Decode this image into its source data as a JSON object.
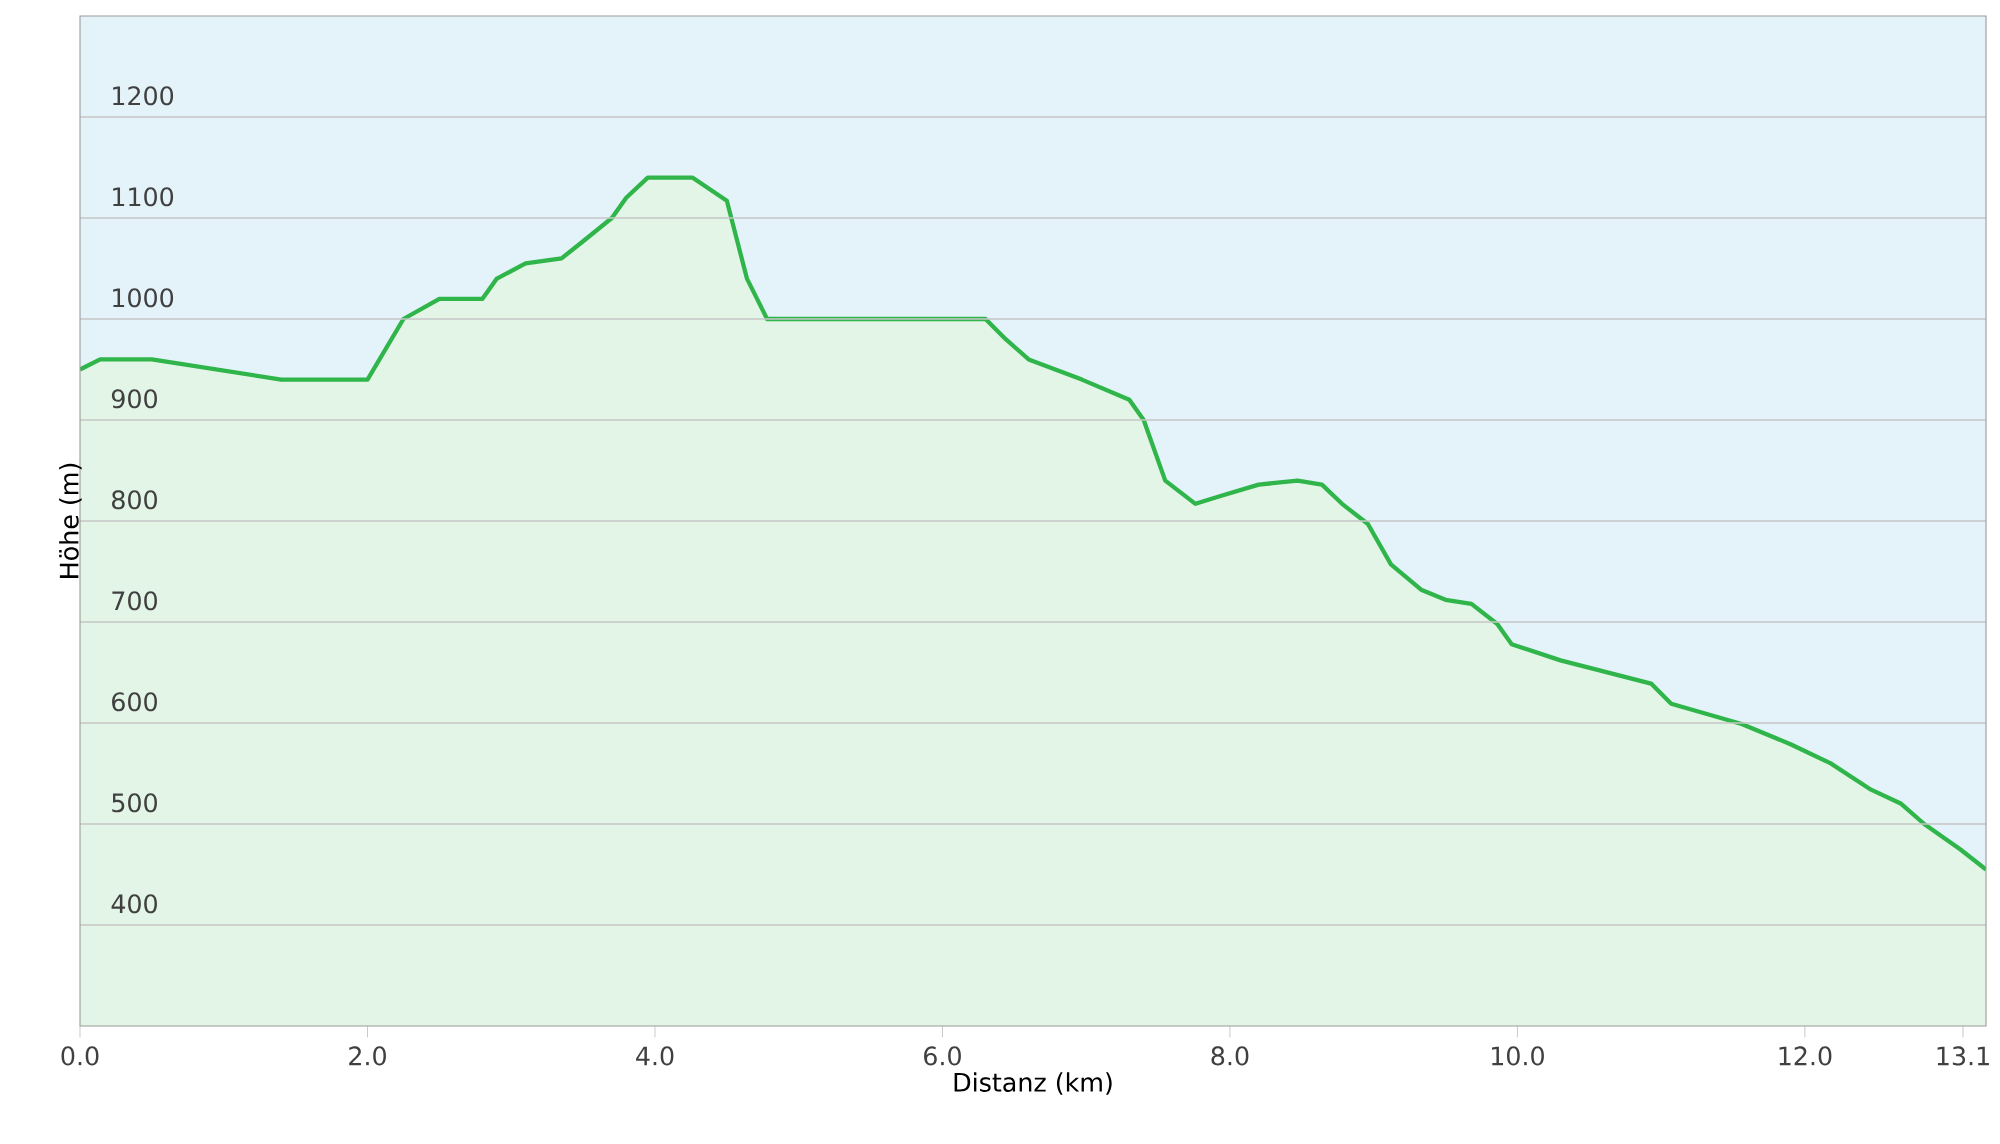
{
  "chart_data": {
    "type": "area",
    "xlabel": "Distanz (km)",
    "ylabel": "Höhe (m)",
    "color": "#2fb54a",
    "x": [
      0,
      0.14,
      0.5,
      1.4,
      2.0,
      2.25,
      2.5,
      2.8,
      2.9,
      3.1,
      3.35,
      3.5,
      3.7,
      3.8,
      3.95,
      4.26,
      4.5,
      4.64,
      4.78,
      6.3,
      6.44,
      6.6,
      6.97,
      7.3,
      7.4,
      7.55,
      7.76,
      7.94,
      8.2,
      8.47,
      8.64,
      8.78,
      8.96,
      9.12,
      9.33,
      9.5,
      9.68,
      9.86,
      9.96,
      10.3,
      10.93,
      11.07,
      11.56,
      11.9,
      12.18,
      12.46,
      12.67,
      12.83,
      13.08,
      13.26
    ],
    "values": [
      950,
      960,
      960,
      940,
      940,
      1000,
      1020,
      1020,
      1040,
      1055,
      1060,
      1077,
      1100,
      1120,
      1140,
      1140,
      1117,
      1040,
      1000,
      1000,
      980,
      960,
      940,
      920,
      900,
      840,
      817,
      825,
      836,
      840,
      836,
      817,
      797,
      757,
      732,
      722,
      718,
      698,
      678,
      662,
      639,
      619,
      599,
      579,
      560,
      534,
      520,
      500,
      475,
      455
    ],
    "xlim": [
      0,
      13.26
    ],
    "ylim": [
      300,
      1300
    ],
    "xticks": [
      {
        "value": 0,
        "label": "0.0"
      },
      {
        "value": 2,
        "label": "2.0"
      },
      {
        "value": 4,
        "label": "4.0"
      },
      {
        "value": 6,
        "label": "6.0"
      },
      {
        "value": 8,
        "label": "8.0"
      },
      {
        "value": 10,
        "label": "10.0"
      },
      {
        "value": 12,
        "label": "12.0"
      },
      13.1
    ],
    "yticks": [
      400,
      500,
      600,
      700,
      800,
      900,
      1000,
      1100,
      1200
    ],
    "grid": "y"
  }
}
